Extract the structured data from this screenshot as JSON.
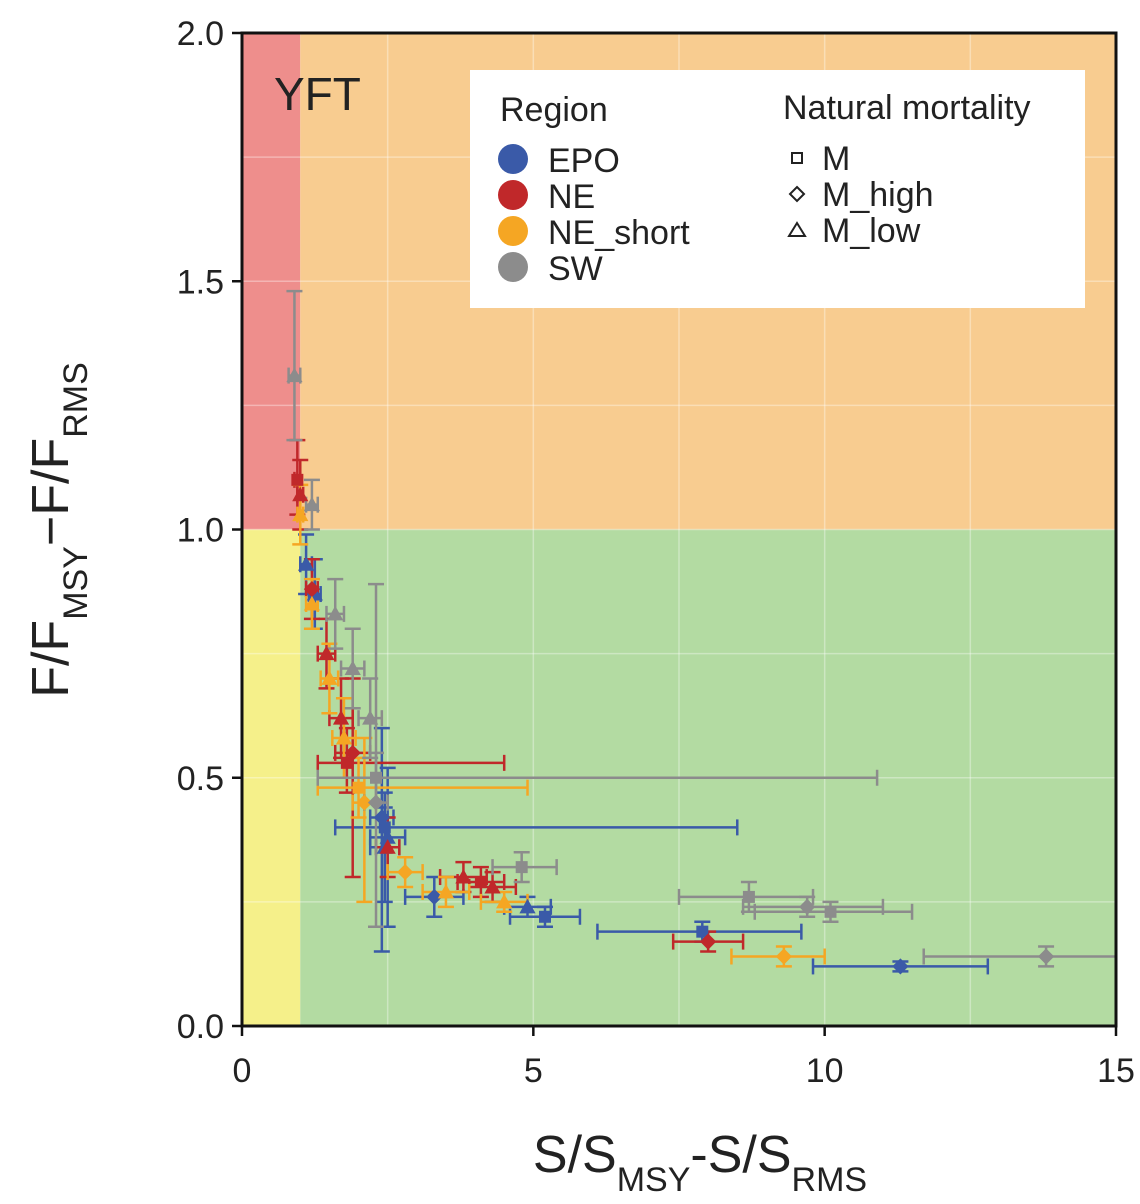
{
  "chart_data": {
    "type": "scatter",
    "panel_label": "YFT",
    "xlabel": {
      "main": "S/S",
      "sub1": "MSY",
      "mid": "-S/S",
      "sub2": "RMS"
    },
    "ylabel": {
      "main": "F/F",
      "sub1": "MSY",
      "mid": "−F/F",
      "sub2": "RMS"
    },
    "xlim": [
      0,
      15
    ],
    "ylim": [
      0,
      2
    ],
    "x_ticks": [
      0,
      5,
      10,
      15
    ],
    "x_tick_labels": [
      "0",
      "5",
      "10",
      "15"
    ],
    "y_ticks": [
      0,
      0.5,
      1,
      1.5,
      2
    ],
    "y_tick_labels": [
      "0.0",
      "0.5",
      "1.0",
      "1.5",
      "2.0"
    ],
    "grid": true,
    "background_zones": [
      {
        "name": "overfished-overfishing",
        "x": [
          0,
          1
        ],
        "y": [
          1,
          2
        ],
        "color": "#ee8e8c"
      },
      {
        "name": "overfishing",
        "x": [
          1,
          15
        ],
        "y": [
          1,
          2
        ],
        "color": "#f8cc90"
      },
      {
        "name": "overfished",
        "x": [
          0,
          1
        ],
        "y": [
          0,
          1
        ],
        "color": "#f5f08a"
      },
      {
        "name": "healthy",
        "x": [
          1,
          15
        ],
        "y": [
          0,
          1
        ],
        "color": "#b3dba2"
      }
    ],
    "legend": {
      "placement": "top-right",
      "region_title": "Region",
      "mortality_title": "Natural mortality",
      "regions": [
        {
          "name": "EPO",
          "color": "#3a5aa8"
        },
        {
          "name": "NE",
          "color": "#c0282a"
        },
        {
          "name": "NE_short",
          "color": "#f5a623"
        },
        {
          "name": "SW",
          "color": "#8c8c8c"
        }
      ],
      "mortality": [
        {
          "name": "M",
          "shape": "square"
        },
        {
          "name": "M_high",
          "shape": "diamond"
        },
        {
          "name": "M_low",
          "shape": "triangle"
        }
      ]
    },
    "series": [
      {
        "name": "EPO",
        "color": "#3a5aa8",
        "points": [
          {
            "x": 2.45,
            "y": 0.4,
            "xlo": 1.6,
            "xhi": 8.5,
            "ylo": 0.36,
            "yhi": 0.44,
            "shape": "square"
          },
          {
            "x": 2.4,
            "y": 0.42,
            "xlo": 2.2,
            "xhi": 2.6,
            "ylo": 0.15,
            "yhi": 0.6,
            "shape": "diamond"
          },
          {
            "x": 2.5,
            "y": 0.38,
            "xlo": 2.2,
            "xhi": 2.8,
            "ylo": 0.2,
            "yhi": 0.52,
            "shape": "triangle"
          },
          {
            "x": 2.45,
            "y": 0.36,
            "xlo": 2.2,
            "xhi": 2.7,
            "ylo": 0.25,
            "yhi": 0.47,
            "shape": "triangle"
          },
          {
            "x": 1.1,
            "y": 0.93,
            "xlo": 1.0,
            "xhi": 1.2,
            "ylo": 0.87,
            "yhi": 0.99,
            "shape": "triangle"
          },
          {
            "x": 1.25,
            "y": 0.87,
            "xlo": 1.15,
            "xhi": 1.35,
            "ylo": 0.8,
            "yhi": 0.94,
            "shape": "triangle"
          },
          {
            "x": 3.3,
            "y": 0.26,
            "xlo": 2.8,
            "xhi": 3.8,
            "ylo": 0.22,
            "yhi": 0.3,
            "shape": "diamond"
          },
          {
            "x": 4.9,
            "y": 0.24,
            "xlo": 4.5,
            "xhi": 5.3,
            "ylo": 0.22,
            "yhi": 0.26,
            "shape": "triangle"
          },
          {
            "x": 5.2,
            "y": 0.22,
            "xlo": 4.6,
            "xhi": 5.8,
            "ylo": 0.2,
            "yhi": 0.24,
            "shape": "square"
          },
          {
            "x": 7.9,
            "y": 0.19,
            "xlo": 6.1,
            "xhi": 9.6,
            "ylo": 0.17,
            "yhi": 0.21,
            "shape": "square"
          },
          {
            "x": 11.3,
            "y": 0.12,
            "xlo": 9.8,
            "xhi": 12.8,
            "ylo": 0.11,
            "yhi": 0.13,
            "shape": "diamond"
          }
        ]
      },
      {
        "name": "NE",
        "color": "#c0282a",
        "points": [
          {
            "x": 0.95,
            "y": 1.1,
            "xlo": 0.9,
            "xhi": 1.0,
            "ylo": 1.03,
            "yhi": 1.18,
            "shape": "square"
          },
          {
            "x": 1.0,
            "y": 1.07,
            "xlo": 0.95,
            "xhi": 1.05,
            "ylo": 1.0,
            "yhi": 1.14,
            "shape": "triangle"
          },
          {
            "x": 1.2,
            "y": 0.88,
            "xlo": 1.1,
            "xhi": 1.3,
            "ylo": 0.82,
            "yhi": 0.94,
            "shape": "diamond"
          },
          {
            "x": 1.45,
            "y": 0.75,
            "xlo": 1.3,
            "xhi": 1.6,
            "ylo": 0.68,
            "yhi": 0.82,
            "shape": "triangle"
          },
          {
            "x": 1.7,
            "y": 0.62,
            "xlo": 1.5,
            "xhi": 1.9,
            "ylo": 0.54,
            "yhi": 0.7,
            "shape": "triangle"
          },
          {
            "x": 1.8,
            "y": 0.53,
            "xlo": 1.3,
            "xhi": 4.5,
            "ylo": 0.47,
            "yhi": 0.6,
            "shape": "square"
          },
          {
            "x": 1.9,
            "y": 0.55,
            "xlo": 1.6,
            "xhi": 2.2,
            "ylo": 0.3,
            "yhi": 0.7,
            "shape": "diamond"
          },
          {
            "x": 2.5,
            "y": 0.36,
            "xlo": 2.3,
            "xhi": 2.7,
            "ylo": 0.3,
            "yhi": 0.42,
            "shape": "triangle"
          },
          {
            "x": 3.8,
            "y": 0.3,
            "xlo": 3.4,
            "xhi": 4.2,
            "ylo": 0.27,
            "yhi": 0.33,
            "shape": "triangle"
          },
          {
            "x": 4.1,
            "y": 0.29,
            "xlo": 3.7,
            "xhi": 4.5,
            "ylo": 0.26,
            "yhi": 0.32,
            "shape": "square"
          },
          {
            "x": 4.3,
            "y": 0.28,
            "xlo": 3.9,
            "xhi": 4.7,
            "ylo": 0.25,
            "yhi": 0.31,
            "shape": "triangle"
          },
          {
            "x": 8.0,
            "y": 0.17,
            "xlo": 7.4,
            "xhi": 8.6,
            "ylo": 0.15,
            "yhi": 0.19,
            "shape": "diamond"
          }
        ]
      },
      {
        "name": "NE_short",
        "color": "#f5a623",
        "points": [
          {
            "x": 1.0,
            "y": 1.03,
            "xlo": 0.95,
            "xhi": 1.05,
            "ylo": 0.97,
            "yhi": 1.09,
            "shape": "triangle"
          },
          {
            "x": 1.2,
            "y": 0.85,
            "xlo": 1.1,
            "xhi": 1.3,
            "ylo": 0.8,
            "yhi": 0.9,
            "shape": "triangle"
          },
          {
            "x": 1.5,
            "y": 0.7,
            "xlo": 1.35,
            "xhi": 1.65,
            "ylo": 0.63,
            "yhi": 0.77,
            "shape": "triangle"
          },
          {
            "x": 1.75,
            "y": 0.58,
            "xlo": 1.55,
            "xhi": 1.95,
            "ylo": 0.5,
            "yhi": 0.66,
            "shape": "triangle"
          },
          {
            "x": 2.0,
            "y": 0.48,
            "xlo": 1.3,
            "xhi": 4.9,
            "ylo": 0.42,
            "yhi": 0.54,
            "shape": "square"
          },
          {
            "x": 2.1,
            "y": 0.45,
            "xlo": 1.9,
            "xhi": 2.3,
            "ylo": 0.25,
            "yhi": 0.58,
            "shape": "diamond"
          },
          {
            "x": 2.8,
            "y": 0.31,
            "xlo": 2.5,
            "xhi": 3.1,
            "ylo": 0.28,
            "yhi": 0.34,
            "shape": "diamond"
          },
          {
            "x": 3.5,
            "y": 0.27,
            "xlo": 3.1,
            "xhi": 3.9,
            "ylo": 0.24,
            "yhi": 0.3,
            "shape": "triangle"
          },
          {
            "x": 4.5,
            "y": 0.25,
            "xlo": 4.1,
            "xhi": 4.9,
            "ylo": 0.23,
            "yhi": 0.27,
            "shape": "triangle"
          },
          {
            "x": 9.3,
            "y": 0.14,
            "xlo": 8.4,
            "xhi": 10.0,
            "ylo": 0.12,
            "yhi": 0.16,
            "shape": "diamond"
          }
        ]
      },
      {
        "name": "SW",
        "color": "#8c8c8c",
        "points": [
          {
            "x": 0.9,
            "y": 1.31,
            "xlo": 0.8,
            "xhi": 1.0,
            "ylo": 1.18,
            "yhi": 1.48,
            "shape": "triangle"
          },
          {
            "x": 1.2,
            "y": 1.05,
            "xlo": 1.1,
            "xhi": 1.3,
            "ylo": 1.0,
            "yhi": 1.1,
            "shape": "triangle"
          },
          {
            "x": 1.6,
            "y": 0.83,
            "xlo": 1.45,
            "xhi": 1.75,
            "ylo": 0.76,
            "yhi": 0.9,
            "shape": "triangle"
          },
          {
            "x": 1.9,
            "y": 0.72,
            "xlo": 1.7,
            "xhi": 2.1,
            "ylo": 0.64,
            "yhi": 0.8,
            "shape": "triangle"
          },
          {
            "x": 2.2,
            "y": 0.62,
            "xlo": 2.0,
            "xhi": 2.4,
            "ylo": 0.54,
            "yhi": 0.7,
            "shape": "triangle"
          },
          {
            "x": 2.3,
            "y": 0.5,
            "xlo": 1.3,
            "xhi": 10.9,
            "ylo": 0.45,
            "yhi": 0.55,
            "shape": "square"
          },
          {
            "x": 2.3,
            "y": 0.45,
            "xlo": 2.1,
            "xhi": 2.5,
            "ylo": 0.2,
            "yhi": 0.89,
            "shape": "diamond"
          },
          {
            "x": 4.8,
            "y": 0.32,
            "xlo": 4.3,
            "xhi": 5.4,
            "ylo": 0.29,
            "yhi": 0.35,
            "shape": "square"
          },
          {
            "x": 8.7,
            "y": 0.26,
            "xlo": 7.5,
            "xhi": 9.8,
            "ylo": 0.23,
            "yhi": 0.29,
            "shape": "square"
          },
          {
            "x": 9.7,
            "y": 0.24,
            "xlo": 8.6,
            "xhi": 11.0,
            "ylo": 0.22,
            "yhi": 0.26,
            "shape": "diamond"
          },
          {
            "x": 10.1,
            "y": 0.23,
            "xlo": 8.8,
            "xhi": 11.5,
            "ylo": 0.21,
            "yhi": 0.25,
            "shape": "square"
          },
          {
            "x": 13.8,
            "y": 0.14,
            "xlo": 11.7,
            "xhi": 15.0,
            "ylo": 0.12,
            "yhi": 0.16,
            "shape": "diamond"
          }
        ]
      }
    ]
  }
}
